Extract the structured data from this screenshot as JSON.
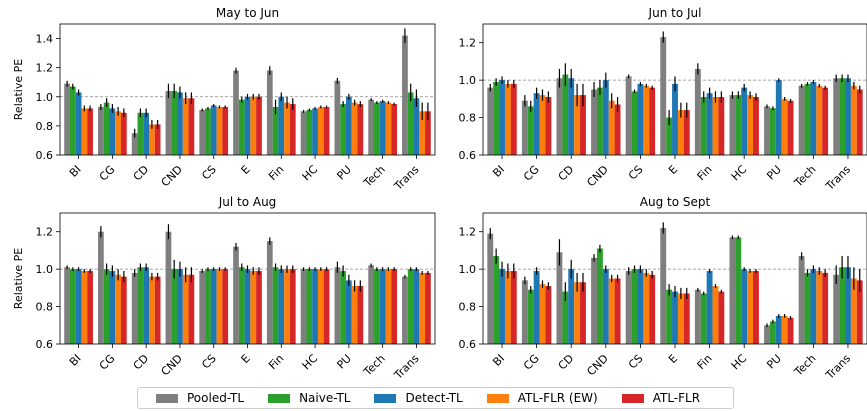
{
  "chart_data": [
    {
      "type": "bar",
      "title": "May to Jun",
      "ylabel": "Relative PE",
      "ylim": [
        0.6,
        1.5
      ],
      "yticks": [
        "0.6",
        "0.8",
        "1.0",
        "1.2",
        "1.4"
      ],
      "reference_line": 1.0,
      "categories": [
        "BI",
        "CG",
        "CD",
        "CND",
        "CS",
        "E",
        "Fin",
        "HC",
        "PU",
        "Tech",
        "Trans"
      ],
      "values": [
        [
          1.09,
          1.07,
          1.03,
          0.92,
          0.92
        ],
        [
          0.93,
          0.96,
          0.92,
          0.9,
          0.89
        ],
        [
          0.75,
          0.89,
          0.89,
          0.81,
          0.81
        ],
        [
          1.04,
          1.04,
          1.03,
          0.99,
          0.99
        ],
        [
          0.91,
          0.92,
          0.94,
          0.93,
          0.93
        ],
        [
          1.18,
          0.98,
          1.0,
          1.0,
          1.0
        ],
        [
          1.18,
          0.93,
          1.0,
          0.96,
          0.95
        ],
        [
          0.9,
          0.91,
          0.92,
          0.93,
          0.93
        ],
        [
          1.11,
          0.95,
          1.0,
          0.96,
          0.95
        ],
        [
          0.98,
          0.96,
          0.97,
          0.96,
          0.95
        ],
        [
          1.42,
          1.03,
          0.99,
          0.9,
          0.9
        ]
      ],
      "errors": [
        [
          0.02,
          0.02,
          0.02,
          0.02,
          0.02
        ],
        [
          0.02,
          0.03,
          0.03,
          0.03,
          0.03
        ],
        [
          0.03,
          0.03,
          0.03,
          0.03,
          0.03
        ],
        [
          0.05,
          0.05,
          0.04,
          0.04,
          0.04
        ],
        [
          0.01,
          0.01,
          0.01,
          0.01,
          0.01
        ],
        [
          0.02,
          0.02,
          0.02,
          0.02,
          0.02
        ],
        [
          0.03,
          0.05,
          0.03,
          0.04,
          0.04
        ],
        [
          0.01,
          0.01,
          0.01,
          0.01,
          0.01
        ],
        [
          0.02,
          0.02,
          0.02,
          0.02,
          0.02
        ],
        [
          0.01,
          0.01,
          0.01,
          0.01,
          0.01
        ],
        [
          0.05,
          0.06,
          0.06,
          0.06,
          0.06
        ]
      ]
    },
    {
      "type": "bar",
      "title": "Jun to Jul",
      "ylabel": "",
      "ylim": [
        0.6,
        1.3
      ],
      "yticks": [
        "0.6",
        "0.8",
        "1.0",
        "1.2"
      ],
      "reference_line": 1.0,
      "categories": [
        "BI",
        "CG",
        "CD",
        "CND",
        "CS",
        "E",
        "Fin",
        "HC",
        "PU",
        "Tech",
        "Trans"
      ],
      "values": [
        [
          0.96,
          0.99,
          1.0,
          0.98,
          0.98
        ],
        [
          0.89,
          0.86,
          0.93,
          0.92,
          0.91
        ],
        [
          1.01,
          1.03,
          1.01,
          0.92,
          0.92
        ],
        [
          0.95,
          0.96,
          1.0,
          0.89,
          0.87
        ],
        [
          1.02,
          0.94,
          0.98,
          0.97,
          0.96
        ],
        [
          1.23,
          0.8,
          0.98,
          0.84,
          0.84
        ],
        [
          1.06,
          0.91,
          0.93,
          0.91,
          0.91
        ],
        [
          0.92,
          0.92,
          0.96,
          0.92,
          0.91
        ],
        [
          0.86,
          0.85,
          1.0,
          0.9,
          0.89
        ],
        [
          0.97,
          0.98,
          0.99,
          0.97,
          0.96
        ],
        [
          1.01,
          1.01,
          1.01,
          0.97,
          0.95
        ]
      ],
      "errors": [
        [
          0.02,
          0.02,
          0.02,
          0.02,
          0.02
        ],
        [
          0.03,
          0.03,
          0.03,
          0.03,
          0.03
        ],
        [
          0.05,
          0.06,
          0.05,
          0.06,
          0.06
        ],
        [
          0.04,
          0.04,
          0.04,
          0.04,
          0.04
        ],
        [
          0.01,
          0.01,
          0.01,
          0.01,
          0.01
        ],
        [
          0.03,
          0.04,
          0.04,
          0.04,
          0.04
        ],
        [
          0.03,
          0.03,
          0.03,
          0.03,
          0.03
        ],
        [
          0.02,
          0.02,
          0.02,
          0.02,
          0.02
        ],
        [
          0.01,
          0.01,
          0.01,
          0.01,
          0.01
        ],
        [
          0.01,
          0.01,
          0.01,
          0.01,
          0.01
        ],
        [
          0.02,
          0.02,
          0.02,
          0.02,
          0.02
        ]
      ]
    },
    {
      "type": "bar",
      "title": "Jul to Aug",
      "ylabel": "Relative PE",
      "ylim": [
        0.6,
        1.3
      ],
      "yticks": [
        "0.6",
        "0.8",
        "1.0",
        "1.2"
      ],
      "reference_line": 1.0,
      "categories": [
        "BI",
        "CG",
        "CD",
        "CND",
        "CS",
        "E",
        "Fin",
        "HC",
        "PU",
        "Tech",
        "Trans"
      ],
      "values": [
        [
          1.01,
          1.0,
          1.0,
          0.99,
          0.99
        ],
        [
          1.2,
          1.0,
          0.99,
          0.97,
          0.96
        ],
        [
          0.98,
          1.01,
          1.01,
          0.96,
          0.96
        ],
        [
          1.2,
          1.0,
          1.0,
          0.97,
          0.97
        ],
        [
          0.99,
          1.0,
          1.0,
          1.0,
          1.0
        ],
        [
          1.12,
          1.01,
          1.0,
          0.99,
          0.99
        ],
        [
          1.15,
          1.01,
          1.0,
          1.0,
          1.0
        ],
        [
          1.0,
          1.0,
          1.0,
          1.0,
          1.0
        ],
        [
          1.01,
          0.99,
          0.94,
          0.91,
          0.91
        ],
        [
          1.02,
          1.0,
          1.0,
          1.0,
          1.0
        ],
        [
          0.96,
          1.0,
          1.0,
          0.98,
          0.98
        ]
      ],
      "errors": [
        [
          0.01,
          0.01,
          0.01,
          0.01,
          0.01
        ],
        [
          0.03,
          0.03,
          0.03,
          0.03,
          0.03
        ],
        [
          0.02,
          0.02,
          0.02,
          0.02,
          0.02
        ],
        [
          0.04,
          0.05,
          0.04,
          0.04,
          0.04
        ],
        [
          0.01,
          0.01,
          0.01,
          0.01,
          0.01
        ],
        [
          0.02,
          0.02,
          0.02,
          0.02,
          0.02
        ],
        [
          0.02,
          0.02,
          0.02,
          0.02,
          0.02
        ],
        [
          0.01,
          0.01,
          0.01,
          0.01,
          0.01
        ],
        [
          0.03,
          0.03,
          0.03,
          0.03,
          0.03
        ],
        [
          0.01,
          0.01,
          0.01,
          0.01,
          0.01
        ],
        [
          0.01,
          0.01,
          0.01,
          0.01,
          0.01
        ]
      ]
    },
    {
      "type": "bar",
      "title": "Aug to Sept",
      "ylabel": "",
      "ylim": [
        0.6,
        1.3
      ],
      "yticks": [
        "0.6",
        "0.8",
        "1.0",
        "1.2"
      ],
      "reference_line": 1.0,
      "categories": [
        "BI",
        "CG",
        "CD",
        "CND",
        "CS",
        "E",
        "Fin",
        "HC",
        "PU",
        "Tech",
        "Trans"
      ],
      "values": [
        [
          1.19,
          1.07,
          1.0,
          0.99,
          0.99
        ],
        [
          0.94,
          0.89,
          0.99,
          0.92,
          0.91
        ],
        [
          1.09,
          0.88,
          1.0,
          0.93,
          0.93
        ],
        [
          1.06,
          1.11,
          1.0,
          0.95,
          0.95
        ],
        [
          0.99,
          1.0,
          1.0,
          0.98,
          0.97
        ],
        [
          1.22,
          0.89,
          0.88,
          0.87,
          0.87
        ],
        [
          0.89,
          0.87,
          0.99,
          0.91,
          0.88
        ],
        [
          1.17,
          1.17,
          1.0,
          0.99,
          0.99
        ],
        [
          0.7,
          0.72,
          0.75,
          0.75,
          0.74
        ],
        [
          1.07,
          0.98,
          1.0,
          0.99,
          0.98
        ],
        [
          0.97,
          1.01,
          1.01,
          0.95,
          0.94
        ]
      ],
      "errors": [
        [
          0.03,
          0.04,
          0.04,
          0.04,
          0.04
        ],
        [
          0.02,
          0.02,
          0.02,
          0.02,
          0.02
        ],
        [
          0.07,
          0.05,
          0.05,
          0.05,
          0.05
        ],
        [
          0.02,
          0.02,
          0.02,
          0.02,
          0.02
        ],
        [
          0.02,
          0.02,
          0.02,
          0.02,
          0.02
        ],
        [
          0.03,
          0.03,
          0.03,
          0.03,
          0.03
        ],
        [
          0.01,
          0.01,
          0.01,
          0.01,
          0.01
        ],
        [
          0.01,
          0.01,
          0.01,
          0.01,
          0.01
        ],
        [
          0.01,
          0.01,
          0.01,
          0.01,
          0.01
        ],
        [
          0.02,
          0.02,
          0.02,
          0.02,
          0.02
        ],
        [
          0.05,
          0.06,
          0.06,
          0.06,
          0.06
        ]
      ]
    }
  ],
  "series": [
    {
      "name": "Pooled-TL",
      "color": "#7f7f7f"
    },
    {
      "name": "Naive-TL",
      "color": "#2ca02c"
    },
    {
      "name": "Detect-TL",
      "color": "#1f77b4"
    },
    {
      "name": "ATL-FLR (EW)",
      "color": "#ff7f0e"
    },
    {
      "name": "ATL-FLR",
      "color": "#d62728"
    }
  ],
  "legend": {
    "placement": "bottom-center"
  }
}
